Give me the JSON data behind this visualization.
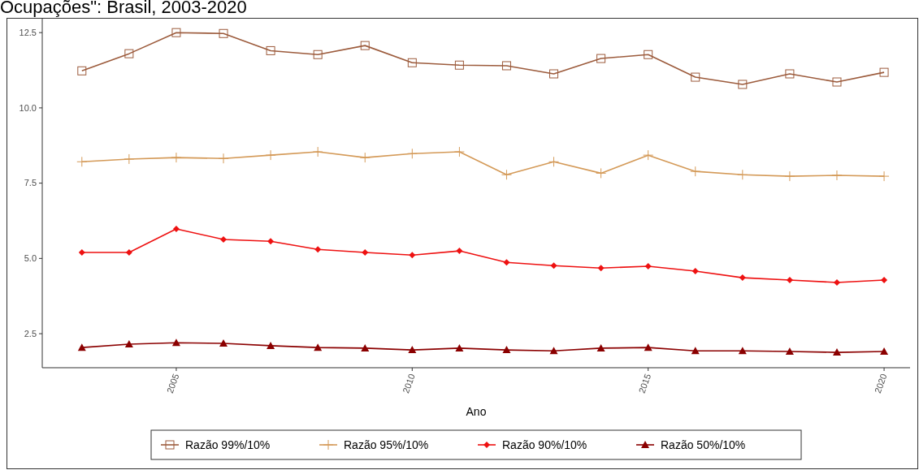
{
  "chart_data": {
    "type": "line",
    "title": "Ocupações\": Brasil, 2003-2020",
    "xlabel": "Ano",
    "x": [
      2003,
      2004,
      2005,
      2006,
      2007,
      2008,
      2009,
      2010,
      2011,
      2012,
      2013,
      2014,
      2015,
      2016,
      2017,
      2018,
      2019,
      2020
    ],
    "xlim": [
      2002.16,
      2020.55
    ],
    "xticks": [
      2005,
      2010,
      2015,
      2020
    ],
    "ylim": [
      1.37,
      12.99
    ],
    "yticks": [
      {
        "value": 2.5,
        "label": "2.5"
      },
      {
        "value": 5,
        "label": "5.0"
      },
      {
        "value": 7.5,
        "label": "7.5"
      },
      {
        "value": 10,
        "label": "10.0"
      },
      {
        "value": 12.5,
        "label": "12.5"
      }
    ],
    "grid": false,
    "legend": "bottom",
    "series": [
      {
        "name": "Razão 99%/10%",
        "color": "#9c5b3c",
        "marker": "square",
        "values": [
          11.23,
          11.8,
          12.5,
          12.47,
          11.9,
          11.77,
          12.07,
          11.5,
          11.42,
          11.4,
          11.13,
          11.64,
          11.77,
          11.02,
          10.78,
          11.13,
          10.86,
          11.18
        ]
      },
      {
        "name": "Razão 95%/10%",
        "color": "#d49a58",
        "marker": "cross",
        "values": [
          8.21,
          8.3,
          8.35,
          8.32,
          8.43,
          8.54,
          8.35,
          8.48,
          8.54,
          7.78,
          8.21,
          7.83,
          8.43,
          7.89,
          7.78,
          7.73,
          7.76,
          7.73
        ]
      },
      {
        "name": "Razão 90%/10%",
        "color": "#ee1111",
        "marker": "diamond",
        "values": [
          5.2,
          5.2,
          5.98,
          5.63,
          5.57,
          5.3,
          5.2,
          5.11,
          5.25,
          4.87,
          4.76,
          4.68,
          4.74,
          4.58,
          4.36,
          4.28,
          4.2,
          4.28
        ]
      },
      {
        "name": "Razão 50%/10%",
        "color": "#8b0000",
        "marker": "triangle",
        "values": [
          2.04,
          2.15,
          2.2,
          2.18,
          2.1,
          2.04,
          2.02,
          1.96,
          2.02,
          1.96,
          1.93,
          2.02,
          2.04,
          1.93,
          1.93,
          1.91,
          1.88,
          1.91
        ]
      }
    ]
  }
}
